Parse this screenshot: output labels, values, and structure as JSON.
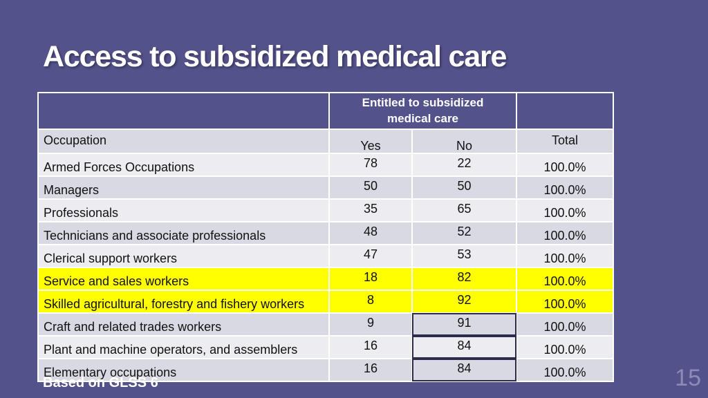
{
  "title": "Access to subsidized medical care",
  "table": {
    "group_header": "Entitled to subsidized medical care",
    "group_header_line1": "Entitled to subsidized",
    "group_header_line2": "medical care",
    "col_occupation": "Occupation",
    "col_yes": "Yes",
    "col_no": "No",
    "col_total": "Total",
    "rows": [
      {
        "occupation": "Armed Forces Occupations",
        "yes": "78",
        "no": "22",
        "total": "100.0%"
      },
      {
        "occupation": "Managers",
        "yes": "50",
        "no": "50",
        "total": "100.0%"
      },
      {
        "occupation": "Professionals",
        "yes": "35",
        "no": "65",
        "total": "100.0%"
      },
      {
        "occupation": "Technicians and associate professionals",
        "yes": "48",
        "no": "52",
        "total": "100.0%"
      },
      {
        "occupation": "Clerical support workers",
        "yes": "47",
        "no": "53",
        "total": "100.0%"
      },
      {
        "occupation": "Service and sales workers",
        "yes": "18",
        "no": "82",
        "total": "100.0%",
        "highlight": "#ffff00"
      },
      {
        "occupation": "Skilled agricultural, forestry and fishery workers",
        "yes": "8",
        "no": "92",
        "total": "100.0%",
        "highlight": "#ffff00"
      },
      {
        "occupation": "Craft and related trades workers",
        "yes": "9",
        "no": "91",
        "total": "100.0%"
      },
      {
        "occupation": "Plant and machine operators, and assemblers",
        "yes": "16",
        "no": "84",
        "total": "100.0%"
      },
      {
        "occupation": "Elementary occupations",
        "yes": "16",
        "no": "84",
        "total": "100.0%"
      }
    ]
  },
  "source_note": "Based on GLSS 6",
  "page_number": "15",
  "colors": {
    "background": "#54528a",
    "highlight": "#ffff00",
    "row_dark": "#d9d9e3",
    "row_light": "#ededf1"
  }
}
